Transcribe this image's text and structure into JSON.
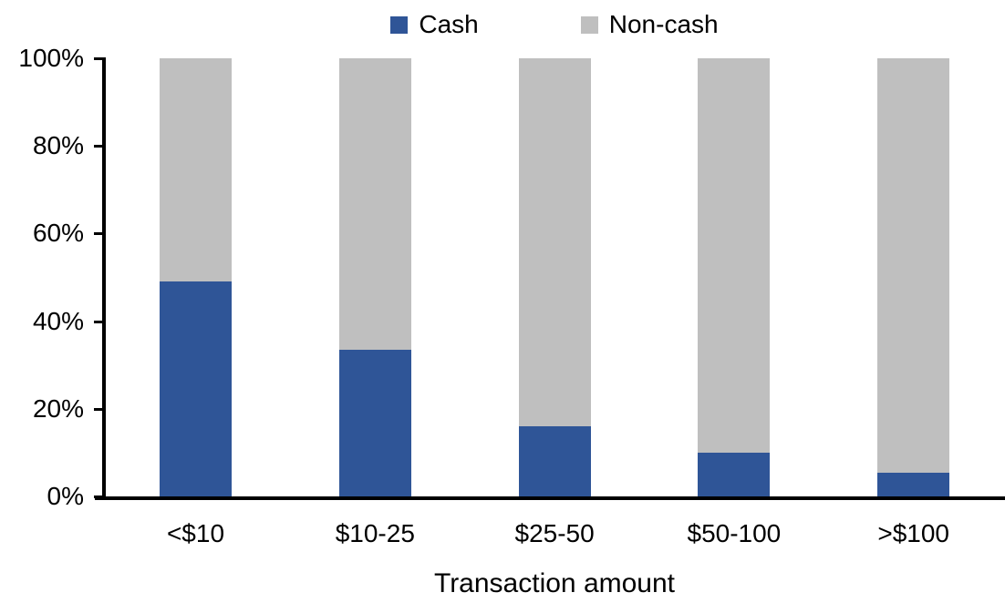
{
  "chart_data": {
    "type": "bar",
    "stacked": true,
    "percent_stacked": true,
    "title": "",
    "xlabel": "Transaction amount",
    "ylabel": "",
    "categories": [
      "<$10",
      "$10-25",
      "$25-50",
      "$50-100",
      ">$100"
    ],
    "series": [
      {
        "name": "Cash",
        "color": "#2F5597",
        "values": [
          49,
          33.5,
          16,
          10,
          5.5
        ]
      },
      {
        "name": "Non-cash",
        "color": "#BFBFBF",
        "values": [
          51,
          66.5,
          84,
          90,
          94.5
        ]
      }
    ],
    "ylim": [
      0,
      100
    ],
    "yticks": [
      "0%",
      "20%",
      "40%",
      "60%",
      "80%",
      "100%"
    ],
    "ytick_step_percent": 20,
    "grid": false,
    "legend_position": "top-center",
    "axis_color": "#000000",
    "background_color": "#FFFFFF"
  }
}
